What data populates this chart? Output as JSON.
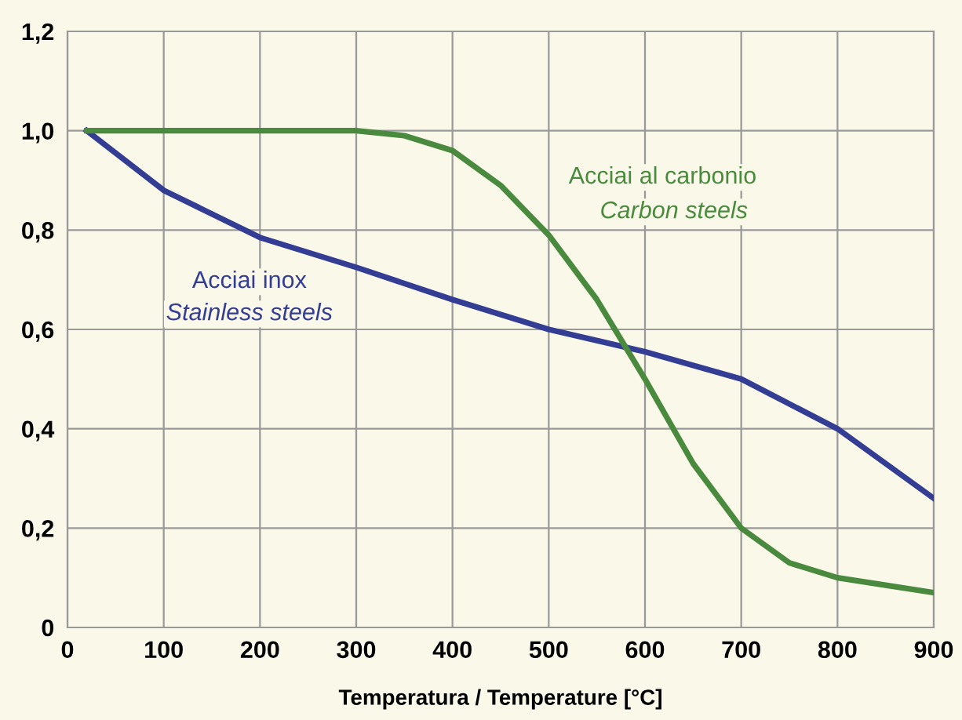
{
  "chart_data": {
    "type": "line",
    "xlabel": "Temperatura / Temperature [°C]",
    "xlim": [
      0,
      900
    ],
    "xticks": [
      0,
      100,
      200,
      300,
      400,
      500,
      600,
      700,
      800,
      900
    ],
    "ylim": [
      0,
      1.2
    ],
    "yticks": [
      0,
      {
        "value": 0.2,
        "label": "0,2"
      },
      {
        "value": 0.4,
        "label": "0,4"
      },
      {
        "value": 0.6,
        "label": "0,6"
      },
      {
        "value": 0.8,
        "label": "0,8"
      },
      {
        "value": 1.0,
        "label": "1,0"
      },
      {
        "value": 1.2,
        "label": "1,2"
      }
    ],
    "grid": true,
    "marker": "none",
    "line_style": "solid",
    "series": [
      {
        "name": "Acciai inox\nStainless steels",
        "color": "#333d94",
        "x": [
          20,
          100,
          200,
          300,
          400,
          500,
          600,
          700,
          800,
          900
        ],
        "values": [
          1.0,
          0.88,
          0.785,
          0.725,
          0.66,
          0.6,
          0.555,
          0.5,
          0.4,
          0.26
        ]
      },
      {
        "name": "Acciai al carbonio\nCarbon steels",
        "color": "#4a8a3e",
        "x": [
          20,
          100,
          200,
          300,
          350,
          400,
          450,
          500,
          550,
          600,
          650,
          700,
          750,
          800,
          850,
          900
        ],
        "values": [
          1.0,
          1.0,
          1.0,
          1.0,
          0.99,
          0.96,
          0.89,
          0.79,
          0.66,
          0.5,
          0.33,
          0.2,
          0.13,
          0.1,
          0.085,
          0.07
        ]
      }
    ]
  }
}
